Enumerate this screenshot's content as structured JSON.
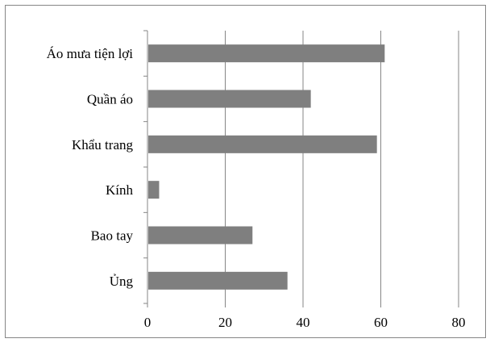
{
  "chart_data": {
    "type": "bar",
    "orientation": "horizontal",
    "title": "",
    "xlabel": "",
    "ylabel": "",
    "categories": [
      "Áo mưa tiện lợi",
      "Quần áo",
      "Khẩu trang",
      "Kính",
      "Bao tay",
      "Ủng"
    ],
    "values": [
      61,
      42,
      59,
      3,
      27,
      36
    ],
    "xlim": [
      0,
      80
    ],
    "x_ticks": [
      "0",
      "20",
      "40",
      "60",
      "80"
    ],
    "grid": "vertical",
    "legend": "none",
    "bar_color": "#7f7f7f",
    "grid_color": "#868686",
    "frame_color": "#868686"
  }
}
